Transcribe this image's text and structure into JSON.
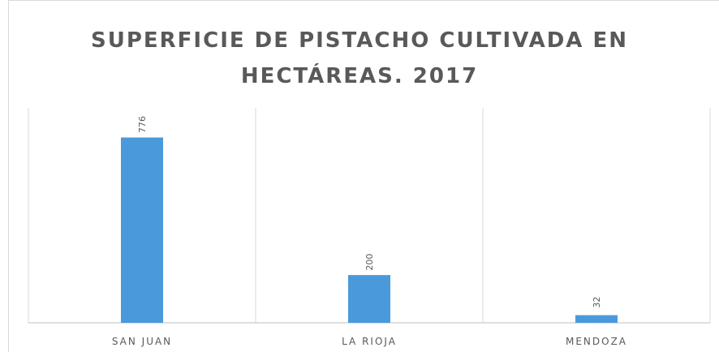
{
  "chart_data": {
    "type": "bar",
    "title_lines": [
      "SUPERFICIE DE PISTACHO CULTIVADA EN",
      "HECTÁREAS. 2017"
    ],
    "categories": [
      "SAN JUAN",
      "LA RIOJA",
      "MENDOZA"
    ],
    "values": [
      776,
      200,
      32
    ],
    "data_labels": [
      "776",
      "200",
      "32"
    ],
    "ylim": [
      0,
      900
    ],
    "grid": "vertical category separators",
    "bar_color": "#4a9adb",
    "legend": "none"
  }
}
